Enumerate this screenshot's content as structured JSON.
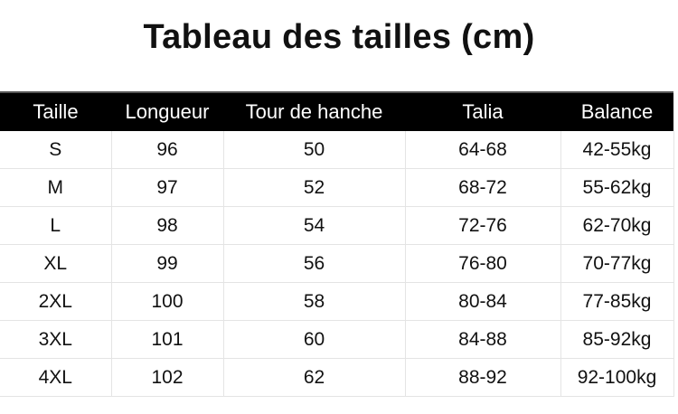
{
  "title": "Tableau des tailles (cm)",
  "headers": [
    "Taille",
    "Longueur",
    "Tour de hanche",
    "Talia",
    "Balance"
  ],
  "rows": [
    [
      "S",
      "96",
      "50",
      "64-68",
      "42-55kg"
    ],
    [
      "M",
      "97",
      "52",
      "68-72",
      "55-62kg"
    ],
    [
      "L",
      "98",
      "54",
      "72-76",
      "62-70kg"
    ],
    [
      "XL",
      "99",
      "56",
      "76-80",
      "70-77kg"
    ],
    [
      "2XL",
      "100",
      "58",
      "80-84",
      "77-85kg"
    ],
    [
      "3XL",
      "101",
      "60",
      "84-88",
      "85-92kg"
    ],
    [
      "4XL",
      "102",
      "62",
      "88-92",
      "92-100kg"
    ]
  ],
  "colors": {
    "header_bg": "#000000",
    "header_text": "#ffffff",
    "grid": "#e4e4e4"
  }
}
